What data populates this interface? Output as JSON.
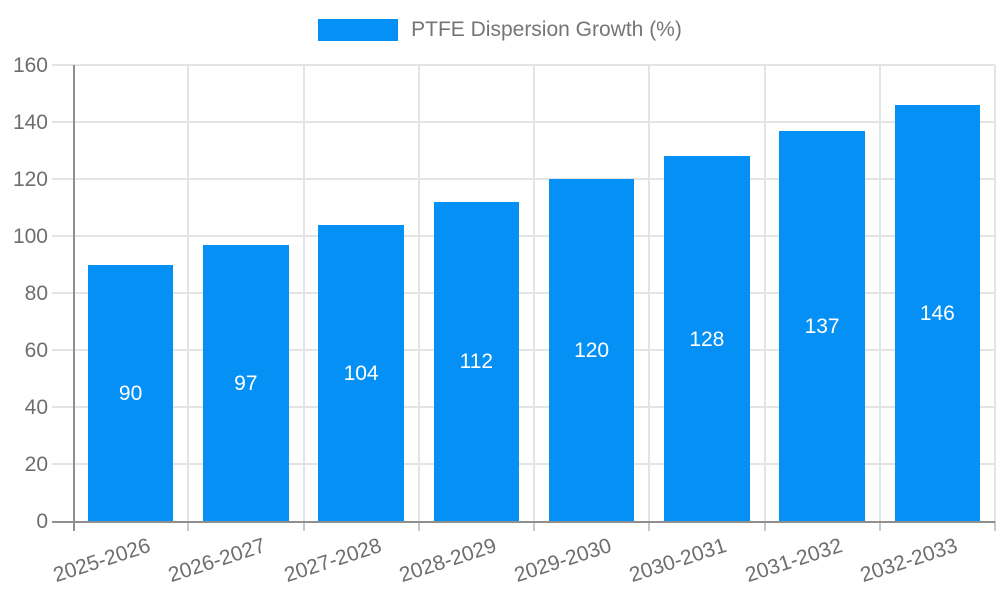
{
  "legend": {
    "label": "PTFE Dispersion Growth (%)"
  },
  "colors": {
    "bar": "#0590f5",
    "grid": "#e4e4e4",
    "axis": "#8f8f8f",
    "tick_text": "#6e6e6e",
    "bar_label_text": "#ffffff",
    "background": "#ffffff"
  },
  "chart_data": {
    "type": "bar",
    "title": "PTFE Dispersion Growth (%)",
    "categories": [
      "2025-2026",
      "2026-2027",
      "2027-2028",
      "2028-2029",
      "2029-2030",
      "2030-2031",
      "2031-2032",
      "2032-2033"
    ],
    "values": [
      90,
      97,
      104,
      112,
      120,
      128,
      137,
      146
    ],
    "xlabel": "",
    "ylabel": "",
    "ylim": [
      0,
      160
    ],
    "ytick_step": 20,
    "yticks": [
      0,
      20,
      40,
      60,
      80,
      100,
      120,
      140,
      160
    ],
    "grid": true,
    "legend_position": "top-center",
    "bar_labels_inside": true
  }
}
